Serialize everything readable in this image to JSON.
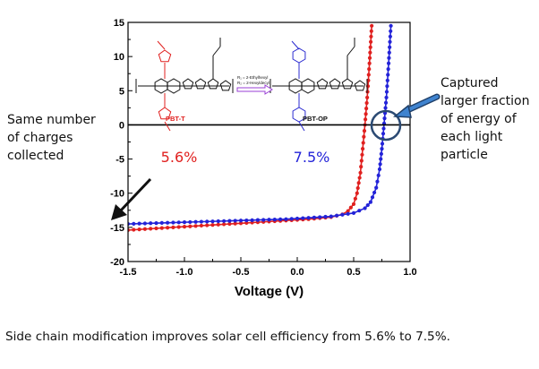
{
  "chart_data": {
    "type": "line",
    "xlabel": "Voltage (V)",
    "ylabel": "",
    "xlim": [
      -1.5,
      1.0
    ],
    "ylim": [
      -20,
      15
    ],
    "xticks": [
      "-1.5",
      "-1.0",
      "-0.5",
      "0.0",
      "0.5",
      "1.0"
    ],
    "yticks": [
      "15",
      "10",
      "5",
      "0",
      "-5",
      "-10",
      "-15",
      "-20"
    ],
    "grid": false,
    "series": [
      {
        "name": "PBT-T",
        "color": "#e0201f",
        "efficiency_label": "5.6%",
        "x": [
          -1.5,
          -1.3,
          -1.1,
          -0.9,
          -0.7,
          -0.5,
          -0.3,
          -0.1,
          0.1,
          0.3,
          0.4,
          0.45,
          0.5,
          0.53,
          0.56,
          0.58,
          0.6,
          0.62,
          0.64,
          0.66
        ],
        "y": [
          -15.4,
          -15.2,
          -15.0,
          -14.8,
          -14.6,
          -14.4,
          -14.2,
          -14.0,
          -13.8,
          -13.5,
          -13.1,
          -12.6,
          -11.6,
          -10.0,
          -7.0,
          -3.5,
          0.0,
          4.0,
          9.0,
          14.5
        ]
      },
      {
        "name": "PBT-OP",
        "color": "#2323d8",
        "efficiency_label": "7.5%",
        "x": [
          -1.5,
          -1.3,
          -1.1,
          -0.9,
          -0.7,
          -0.5,
          -0.3,
          -0.1,
          0.1,
          0.3,
          0.5,
          0.6,
          0.65,
          0.7,
          0.73,
          0.75,
          0.77,
          0.79,
          0.81,
          0.83
        ],
        "y": [
          -14.5,
          -14.4,
          -14.3,
          -14.2,
          -14.1,
          -14.0,
          -13.9,
          -13.8,
          -13.6,
          -13.4,
          -12.9,
          -12.2,
          -11.3,
          -9.2,
          -6.5,
          -3.5,
          0.2,
          4.0,
          9.0,
          14.5
        ]
      }
    ],
    "molecule_labels": {
      "left": "PBT-T",
      "right": "PBT-OP",
      "arrow_text_1": "R₁ = 2-Ethylhexyl",
      "arrow_text_2": "R₂ = 2-Hexyldecyl"
    }
  },
  "annotations": {
    "left_lines": [
      "Same number",
      "of charges",
      "collected"
    ],
    "right_lines": [
      "Captured",
      "larger fraction",
      "of energy of",
      "each light",
      "particle"
    ]
  },
  "caption": "Side chain modification  improves solar cell efficiency from 5.6% to 7.5%."
}
